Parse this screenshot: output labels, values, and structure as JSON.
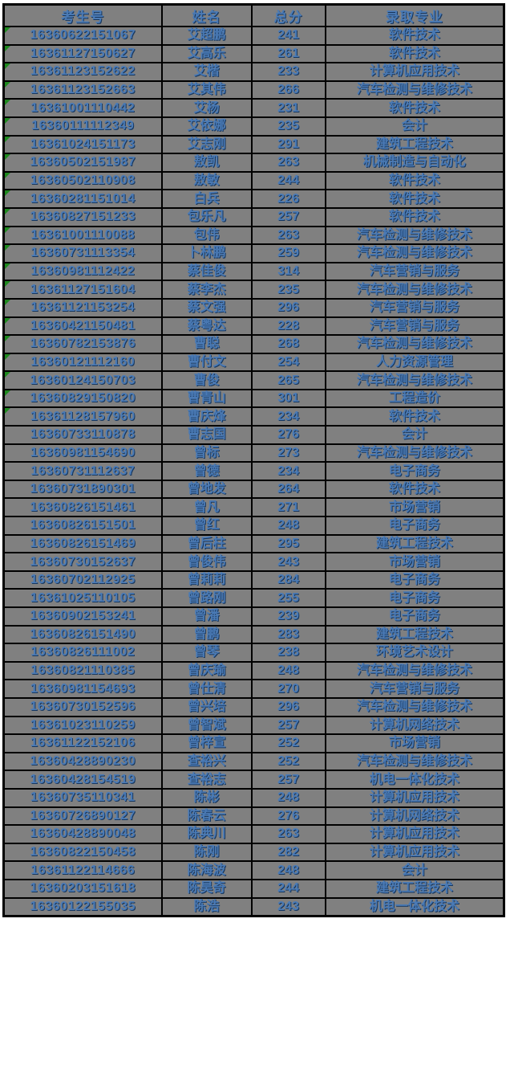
{
  "colors": {
    "page_bg": "#ffffff",
    "cell_bg": "#808080",
    "grid_border": "#000000",
    "text_blue": "#4a7ab5",
    "text_shadow": "#17375e",
    "flag_green": "#1e8a1e"
  },
  "table": {
    "columns": [
      {
        "key": "id",
        "label": "考生号"
      },
      {
        "key": "name",
        "label": "姓名"
      },
      {
        "key": "score",
        "label": "总分"
      },
      {
        "key": "major",
        "label": "录取专业"
      }
    ],
    "rows": [
      {
        "id": "16360622151067",
        "name": "艾超鹏",
        "score": "241",
        "major": "软件技术",
        "flagged": true
      },
      {
        "id": "16361127150627",
        "name": "艾高乐",
        "score": "261",
        "major": "软件技术",
        "flagged": true
      },
      {
        "id": "16361123152622",
        "name": "艾楷",
        "score": "233",
        "major": "计算机应用技术",
        "flagged": true
      },
      {
        "id": "16361123152663",
        "name": "艾其伟",
        "score": "266",
        "major": "汽车检测与维修技术",
        "flagged": true
      },
      {
        "id": "16361001110442",
        "name": "艾杨",
        "score": "231",
        "major": "软件技术",
        "flagged": true
      },
      {
        "id": "16360111112349",
        "name": "艾依娜",
        "score": "235",
        "major": "会计",
        "flagged": true
      },
      {
        "id": "16361024151173",
        "name": "艾志刚",
        "score": "291",
        "major": "建筑工程技术",
        "flagged": true
      },
      {
        "id": "16360502151987",
        "name": "敖凯",
        "score": "263",
        "major": "机械制造与自动化",
        "flagged": true
      },
      {
        "id": "16360502110908",
        "name": "敖敏",
        "score": "244",
        "major": "软件技术",
        "flagged": true
      },
      {
        "id": "16360281151014",
        "name": "白兵",
        "score": "226",
        "major": "软件技术",
        "flagged": true
      },
      {
        "id": "16360827151233",
        "name": "包乐凡",
        "score": "257",
        "major": "软件技术",
        "flagged": true
      },
      {
        "id": "16361001110088",
        "name": "包伟",
        "score": "263",
        "major": "汽车检测与维修技术",
        "flagged": true
      },
      {
        "id": "16360731113354",
        "name": "卜林鹏",
        "score": "259",
        "major": "汽车检测与维修技术",
        "flagged": true
      },
      {
        "id": "16360981112422",
        "name": "蔡佳俊",
        "score": "314",
        "major": "汽车营销与服务",
        "flagged": true
      },
      {
        "id": "16361127151604",
        "name": "蔡李杰",
        "score": "235",
        "major": "汽车检测与维修技术",
        "flagged": true
      },
      {
        "id": "16361121153254",
        "name": "蔡文强",
        "score": "296",
        "major": "汽车营销与服务",
        "flagged": true
      },
      {
        "id": "16360421150481",
        "name": "蔡粤达",
        "score": "228",
        "major": "汽车营销与服务",
        "flagged": true
      },
      {
        "id": "16360782153876",
        "name": "曹聪",
        "score": "268",
        "major": "汽车检测与维修技术",
        "flagged": true
      },
      {
        "id": "16360121112160",
        "name": "曹付文",
        "score": "254",
        "major": "人力资源管理",
        "flagged": true
      },
      {
        "id": "16360124150703",
        "name": "曹俊",
        "score": "265",
        "major": "汽车检测与维修技术",
        "flagged": true
      },
      {
        "id": "16360829150820",
        "name": "曹青山",
        "score": "301",
        "major": "工程造价",
        "flagged": true
      },
      {
        "id": "16361128157960",
        "name": "曹庆烽",
        "score": "234",
        "major": "软件技术",
        "flagged": true
      },
      {
        "id": "16360733110878",
        "name": "曹志国",
        "score": "276",
        "major": "会计",
        "flagged": false
      },
      {
        "id": "16360981154690",
        "name": "曾标",
        "score": "273",
        "major": "汽车检测与维修技术",
        "flagged": false
      },
      {
        "id": "16360731112637",
        "name": "曾德",
        "score": "234",
        "major": "电子商务",
        "flagged": false
      },
      {
        "id": "16360731890301",
        "name": "曾地发",
        "score": "264",
        "major": "软件技术",
        "flagged": false
      },
      {
        "id": "16360826151461",
        "name": "曾凡",
        "score": "271",
        "major": "市场营销",
        "flagged": false
      },
      {
        "id": "16360826151501",
        "name": "曾红",
        "score": "248",
        "major": "电子商务",
        "flagged": false
      },
      {
        "id": "16360826151469",
        "name": "曾后柱",
        "score": "295",
        "major": "建筑工程技术",
        "flagged": false
      },
      {
        "id": "16360730152637",
        "name": "曾俊伟",
        "score": "243",
        "major": "市场营销",
        "flagged": false
      },
      {
        "id": "16360702112925",
        "name": "曾莉莉",
        "score": "284",
        "major": "电子商务",
        "flagged": false
      },
      {
        "id": "16361025110105",
        "name": "曾路刚",
        "score": "255",
        "major": "电子商务",
        "flagged": false
      },
      {
        "id": "16360902153241",
        "name": "曾潘",
        "score": "239",
        "major": "电子商务",
        "flagged": false
      },
      {
        "id": "16360826151490",
        "name": "曾鹏",
        "score": "283",
        "major": "建筑工程技术",
        "flagged": false
      },
      {
        "id": "16360826111002",
        "name": "曾琴",
        "score": "238",
        "major": "环境艺术设计",
        "flagged": false
      },
      {
        "id": "16360821110385",
        "name": "曾庆瑜",
        "score": "248",
        "major": "汽车检测与维修技术",
        "flagged": false
      },
      {
        "id": "16360981154693",
        "name": "曾仕清",
        "score": "270",
        "major": "汽车营销与服务",
        "flagged": false
      },
      {
        "id": "16360730152596",
        "name": "曾兴培",
        "score": "296",
        "major": "汽车检测与维修技术",
        "flagged": false
      },
      {
        "id": "16361023110259",
        "name": "曾智斌",
        "score": "257",
        "major": "计算机网络技术",
        "flagged": false
      },
      {
        "id": "16361122152106",
        "name": "曾梓宣",
        "score": "252",
        "major": "市场营销",
        "flagged": false
      },
      {
        "id": "16360428890230",
        "name": "查裕兴",
        "score": "252",
        "major": "汽车检测与维修技术",
        "flagged": false
      },
      {
        "id": "16360428154519",
        "name": "查裕志",
        "score": "257",
        "major": "机电一体化技术",
        "flagged": false
      },
      {
        "id": "16360735110341",
        "name": "陈彬",
        "score": "248",
        "major": "计算机应用技术",
        "flagged": false
      },
      {
        "id": "16360726890127",
        "name": "陈春云",
        "score": "276",
        "major": "计算机网络技术",
        "flagged": false
      },
      {
        "id": "16360428890048",
        "name": "陈典川",
        "score": "263",
        "major": "计算机应用技术",
        "flagged": false
      },
      {
        "id": "16360822150458",
        "name": "陈刚",
        "score": "282",
        "major": "计算机应用技术",
        "flagged": false
      },
      {
        "id": "16361122114666",
        "name": "陈海波",
        "score": "248",
        "major": "会计",
        "flagged": false
      },
      {
        "id": "16360203151618",
        "name": "陈昊奇",
        "score": "244",
        "major": "建筑工程技术",
        "flagged": false
      },
      {
        "id": "16360122155035",
        "name": "陈浩",
        "score": "243",
        "major": "机电一体化技术",
        "flagged": false
      }
    ]
  }
}
